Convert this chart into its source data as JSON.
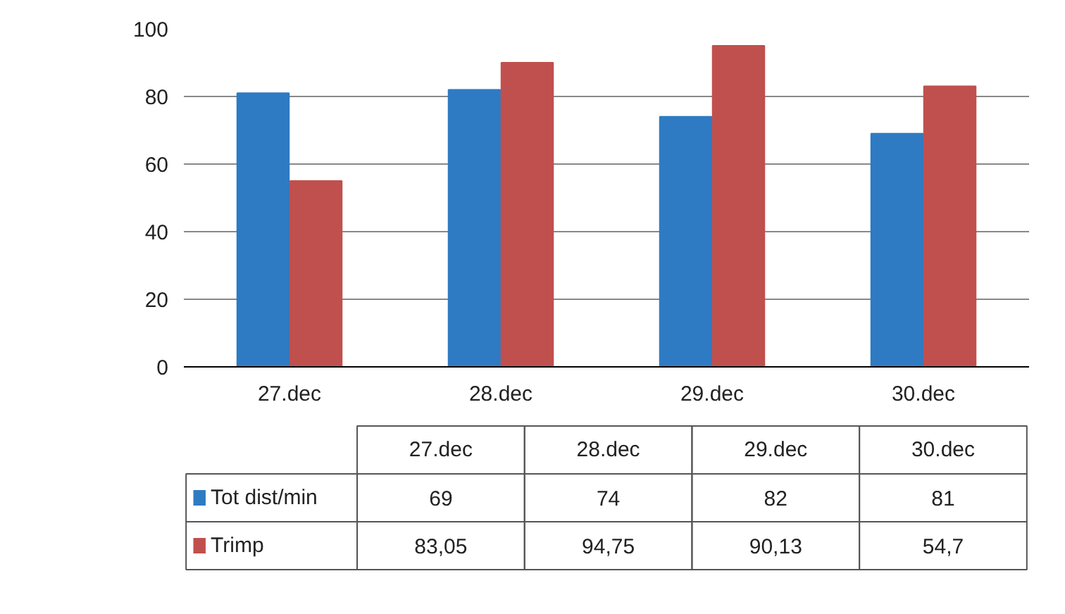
{
  "chart_data": [
    {
      "type": "bar",
      "categories": [
        "27.dec",
        "28.dec",
        "29.dec",
        "30.dec"
      ],
      "ylim": [
        0,
        100
      ],
      "yticks": [
        0,
        20,
        40,
        60,
        80,
        100
      ],
      "grid": "y",
      "series": [
        {
          "color": "#2e7bc4",
          "values": [
            81,
            82,
            74,
            69
          ]
        },
        {
          "color": "#c0504d",
          "values": [
            55,
            90,
            95,
            83
          ]
        }
      ]
    },
    {
      "type": "other",
      "categories": [
        "27.dec",
        "28.dec",
        "29.dec",
        "30.dec"
      ],
      "series": [
        {
          "name": "Tot dist/min",
          "color": "#2e7bc4",
          "values": [
            69,
            74,
            82,
            81
          ],
          "value_labels": [
            "69",
            "74",
            "82",
            "81"
          ]
        },
        {
          "name": "Trimp",
          "color": "#c0504d",
          "values": [
            83.05,
            94.75,
            90.13,
            54.7
          ],
          "value_labels": [
            "83,05",
            "94,75",
            "90,13",
            "54,7"
          ]
        }
      ]
    }
  ]
}
